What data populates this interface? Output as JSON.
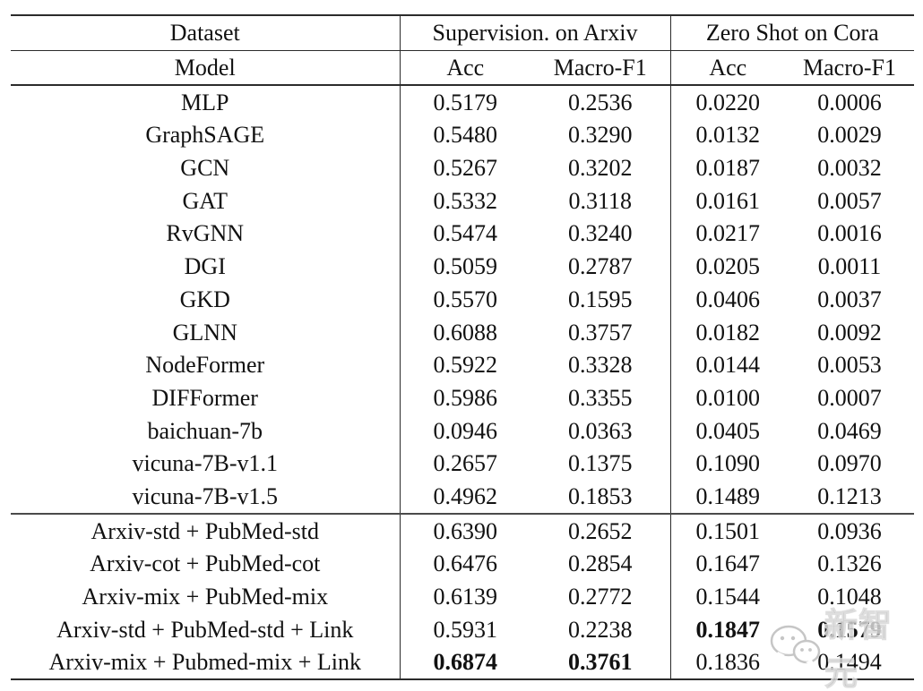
{
  "table": {
    "header_row1": {
      "dataset": "Dataset",
      "arxiv_group": "Supervision. on Arxiv",
      "cora_group": "Zero Shot on Cora"
    },
    "header_row2": {
      "model": "Model",
      "arxiv_acc": "Acc",
      "arxiv_f1": "Macro-F1",
      "cora_acc": "Acc",
      "cora_f1": "Macro-F1"
    },
    "baseline_rows": [
      {
        "model": "MLP",
        "values": [
          "0.5179",
          "0.2536",
          "0.0220",
          "0.0006"
        ],
        "bold": [
          false,
          false,
          false,
          false
        ]
      },
      {
        "model": "GraphSAGE",
        "values": [
          "0.5480",
          "0.3290",
          "0.0132",
          "0.0029"
        ],
        "bold": [
          false,
          false,
          false,
          false
        ]
      },
      {
        "model": "GCN",
        "values": [
          "0.5267",
          "0.3202",
          "0.0187",
          "0.0032"
        ],
        "bold": [
          false,
          false,
          false,
          false
        ]
      },
      {
        "model": "GAT",
        "values": [
          "0.5332",
          "0.3118",
          "0.0161",
          "0.0057"
        ],
        "bold": [
          false,
          false,
          false,
          false
        ]
      },
      {
        "model": "RvGNN",
        "values": [
          "0.5474",
          "0.3240",
          "0.0217",
          "0.0016"
        ],
        "bold": [
          false,
          false,
          false,
          false
        ]
      },
      {
        "model": "DGI",
        "values": [
          "0.5059",
          "0.2787",
          "0.0205",
          "0.0011"
        ],
        "bold": [
          false,
          false,
          false,
          false
        ]
      },
      {
        "model": "GKD",
        "values": [
          "0.5570",
          "0.1595",
          "0.0406",
          "0.0037"
        ],
        "bold": [
          false,
          false,
          false,
          false
        ]
      },
      {
        "model": "GLNN",
        "values": [
          "0.6088",
          "0.3757",
          "0.0182",
          "0.0092"
        ],
        "bold": [
          false,
          false,
          false,
          false
        ]
      },
      {
        "model": "NodeFormer",
        "values": [
          "0.5922",
          "0.3328",
          "0.0144",
          "0.0053"
        ],
        "bold": [
          false,
          false,
          false,
          false
        ]
      },
      {
        "model": "DIFFormer",
        "values": [
          "0.5986",
          "0.3355",
          "0.0100",
          "0.0007"
        ],
        "bold": [
          false,
          false,
          false,
          false
        ]
      },
      {
        "model": "baichuan-7b",
        "values": [
          "0.0946",
          "0.0363",
          "0.0405",
          "0.0469"
        ],
        "bold": [
          false,
          false,
          false,
          false
        ]
      },
      {
        "model": "vicuna-7B-v1.1",
        "values": [
          "0.2657",
          "0.1375",
          "0.1090",
          "0.0970"
        ],
        "bold": [
          false,
          false,
          false,
          false
        ]
      },
      {
        "model": "vicuna-7B-v1.5",
        "values": [
          "0.4962",
          "0.1853",
          "0.1489",
          "0.1213"
        ],
        "bold": [
          false,
          false,
          false,
          false
        ]
      }
    ],
    "finetuned_rows": [
      {
        "model": "Arxiv-std + PubMed-std",
        "values": [
          "0.6390",
          "0.2652",
          "0.1501",
          "0.0936"
        ],
        "bold": [
          false,
          false,
          false,
          false
        ]
      },
      {
        "model": "Arxiv-cot + PubMed-cot",
        "values": [
          "0.6476",
          "0.2854",
          "0.1647",
          "0.1326"
        ],
        "bold": [
          false,
          false,
          false,
          false
        ]
      },
      {
        "model": "Arxiv-mix + PubMed-mix",
        "values": [
          "0.6139",
          "0.2772",
          "0.1544",
          "0.1048"
        ],
        "bold": [
          false,
          false,
          false,
          false
        ]
      },
      {
        "model": "Arxiv-std + PubMed-std + Link",
        "values": [
          "0.5931",
          "0.2238",
          "0.1847",
          "0.1579"
        ],
        "bold": [
          false,
          false,
          true,
          true
        ]
      },
      {
        "model": "Arxiv-mix + Pubmed-mix + Link",
        "values": [
          "0.6874",
          "0.3761",
          "0.1836",
          "0.1494"
        ],
        "bold": [
          true,
          true,
          false,
          false
        ]
      }
    ]
  },
  "watermark": {
    "text": "新智元",
    "icon": "chat-bubbles-icon"
  },
  "colors": {
    "text": "#111111",
    "rule": "#2b2b2b",
    "watermark_gray": "#b9b9b9",
    "background": "#ffffff"
  }
}
